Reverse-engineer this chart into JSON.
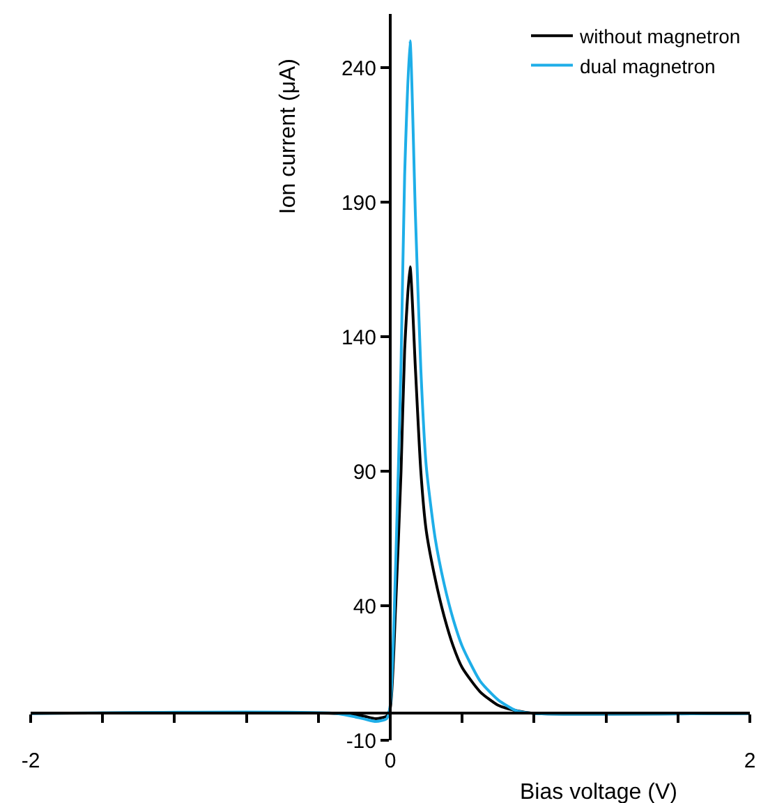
{
  "chart_data": {
    "type": "line",
    "xlabel": "Bias voltage (V)",
    "ylabel": "Ion current (μA)",
    "x": [
      -2,
      -0.3,
      -0.15,
      -0.08,
      -0.02,
      0,
      0.03,
      0.06,
      0.08,
      0.11,
      0.14,
      0.17,
      0.2,
      0.25,
      0.3,
      0.35,
      0.4,
      0.5,
      0.6,
      0.7,
      0.8,
      2
    ],
    "series": [
      {
        "name": "without magnetron",
        "color": "#000000",
        "values": [
          0,
          0,
          -1,
          -2,
          -1,
          2,
          40,
          90,
          135,
          166,
          128,
          90,
          68,
          50,
          36,
          25,
          17,
          8,
          3,
          1,
          0,
          0
        ]
      },
      {
        "name": "dual magnetron",
        "color": "#1eaee8",
        "values": [
          0,
          0,
          -2,
          -3,
          -2,
          3,
          55,
          130,
          200,
          250,
          185,
          128,
          92,
          65,
          48,
          35,
          25,
          12,
          5,
          1,
          0,
          0
        ]
      }
    ],
    "xlim": [
      -2,
      2
    ],
    "ylim": [
      -10,
      260
    ],
    "xticks": [
      -2,
      {
        "value": -1.6,
        "label": null
      },
      {
        "value": -1.2,
        "label": null
      },
      {
        "value": -0.8,
        "label": null
      },
      {
        "value": -0.4,
        "label": null
      },
      0,
      {
        "value": 0.4,
        "label": null
      },
      {
        "value": 0.8,
        "label": null
      },
      {
        "value": 1.2,
        "label": null
      },
      {
        "value": 1.6,
        "label": null
      },
      2
    ],
    "yticks": [
      -10,
      40,
      90,
      140,
      190,
      240
    ],
    "grid": false,
    "legend": "top right",
    "marker": "none",
    "line_style": "solid"
  }
}
